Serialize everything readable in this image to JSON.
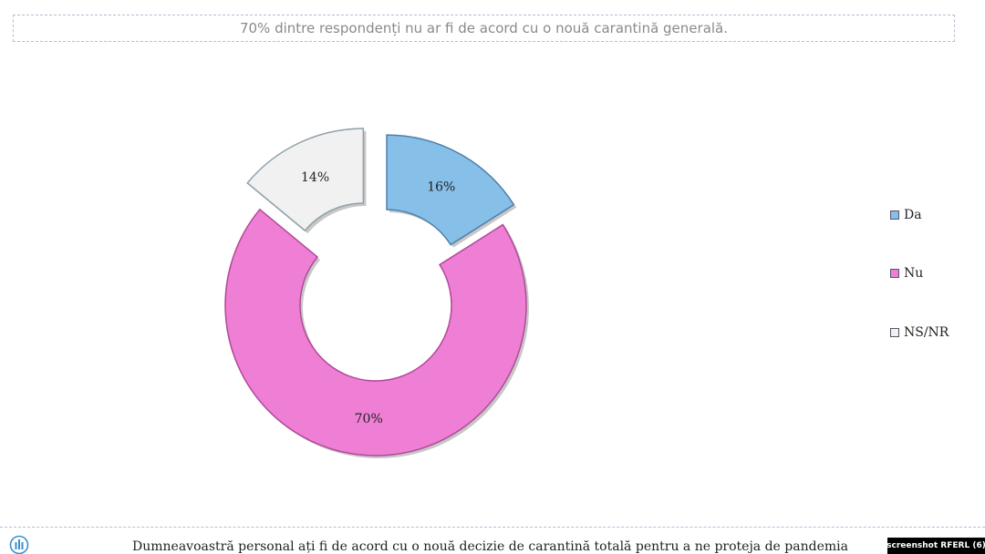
{
  "headline": "70% dintre respondenți nu ar fi de acord cu o nouă carantină generală.",
  "chart_data": {
    "type": "pie",
    "donut": true,
    "categories": [
      "Da",
      "Nu",
      "NS/NR"
    ],
    "values": [
      16,
      70,
      14
    ],
    "data_labels": [
      "16%",
      "70%",
      "14%"
    ],
    "colors": [
      "#86bfe8",
      "#ef7fd4",
      "#f1f1f1"
    ],
    "exploded": true,
    "legend_position": "right"
  },
  "legend": [
    {
      "label": "Da",
      "color": "#86bfe8"
    },
    {
      "label": "Nu",
      "color": "#ef7fd4"
    },
    {
      "label": "NS/NR",
      "color": "#f1f1f1"
    }
  ],
  "footer": {
    "question": "Dumneavoastră personal ați fi de acord cu o nouă decizie de carantină totală pentru a ne proteja de pandemia",
    "credit": "screenshot RFERL (6)"
  }
}
